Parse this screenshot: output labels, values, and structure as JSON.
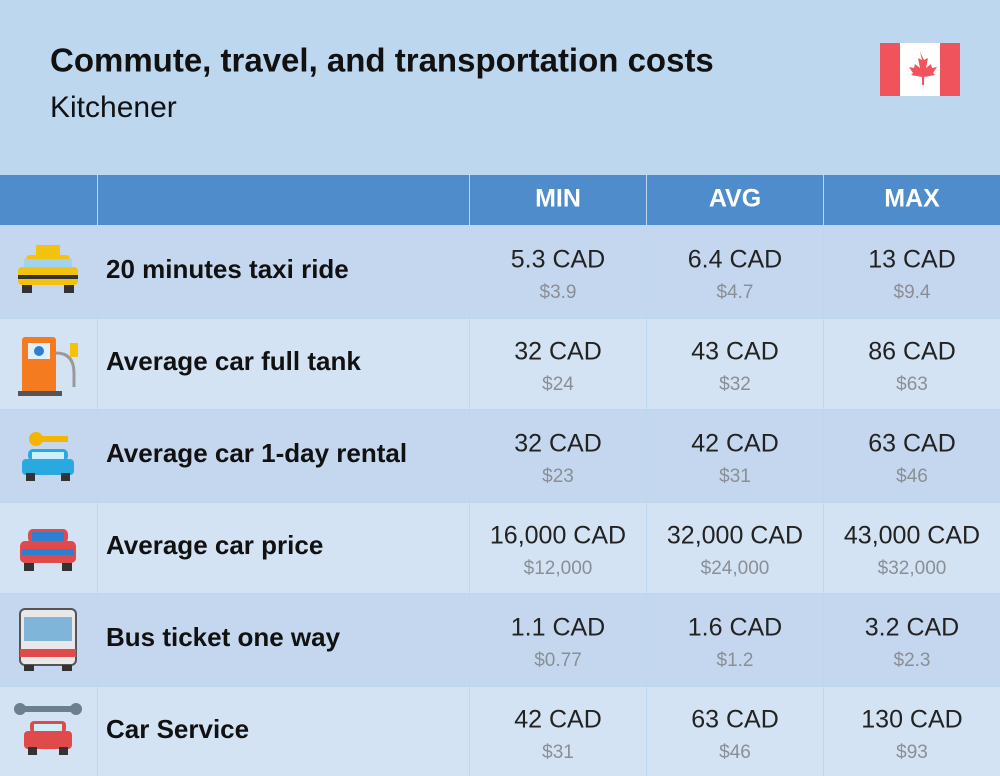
{
  "header": {
    "title": "Commute, travel, and transportation costs",
    "subtitle": "Kitchener"
  },
  "table": {
    "columns": [
      "MIN",
      "AVG",
      "MAX"
    ],
    "rows": [
      {
        "label": "20 minutes taxi ride",
        "cells": [
          {
            "local": "5.3 CAD",
            "usd": "$3.9"
          },
          {
            "local": "6.4 CAD",
            "usd": "$4.7"
          },
          {
            "local": "13 CAD",
            "usd": "$9.4"
          }
        ]
      },
      {
        "label": "Average car full tank",
        "cells": [
          {
            "local": "32 CAD",
            "usd": "$24"
          },
          {
            "local": "43 CAD",
            "usd": "$32"
          },
          {
            "local": "86 CAD",
            "usd": "$63"
          }
        ]
      },
      {
        "label": "Average car 1-day rental",
        "cells": [
          {
            "local": "32 CAD",
            "usd": "$23"
          },
          {
            "local": "42 CAD",
            "usd": "$31"
          },
          {
            "local": "63 CAD",
            "usd": "$46"
          }
        ]
      },
      {
        "label": "Average car price",
        "cells": [
          {
            "local": "16,000 CAD",
            "usd": "$12,000"
          },
          {
            "local": "32,000 CAD",
            "usd": "$24,000"
          },
          {
            "local": "43,000 CAD",
            "usd": "$32,000"
          }
        ]
      },
      {
        "label": "Bus ticket one way",
        "cells": [
          {
            "local": "1.1 CAD",
            "usd": "$0.77"
          },
          {
            "local": "1.6 CAD",
            "usd": "$1.2"
          },
          {
            "local": "3.2 CAD",
            "usd": "$2.3"
          }
        ]
      },
      {
        "label": "Car Service",
        "cells": [
          {
            "local": "42 CAD",
            "usd": "$31"
          },
          {
            "local": "63 CAD",
            "usd": "$46"
          },
          {
            "local": "130 CAD",
            "usd": "$93"
          }
        ]
      }
    ]
  }
}
